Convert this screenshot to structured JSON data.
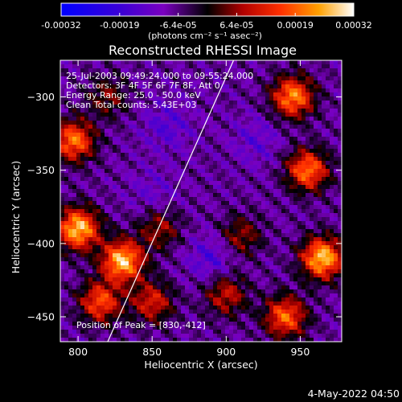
{
  "chart_data": {
    "type": "heatmap",
    "title": "Reconstructed RHESSI Image",
    "xlabel": "Heliocentric X (arcsec)",
    "ylabel": "Heliocentric Y (arcsec)",
    "xlim": [
      788,
      978
    ],
    "ylim": [
      -467,
      -275
    ],
    "x_ticks": [
      800,
      850,
      900,
      950
    ],
    "y_ticks": [
      -300,
      -350,
      -400,
      -450
    ],
    "colorbar": {
      "ticks": [
        "-0.00032",
        "-0.00019",
        "-6.4e-05",
        "6.4e-05",
        "0.00019",
        "0.00032"
      ],
      "range": [
        -0.00032,
        0.00032
      ],
      "unit_label": "(photons cm⁻² s⁻¹ asec⁻²)"
    },
    "info_lines": [
      "25-Jul-2003 09:49:24.000 to 09:55:24.000",
      "Detectors: 3F 4F 5F 6F 7F 8F, Att 0",
      "Energy Range: 25.0 - 50.0 keV",
      "Clean     Total counts: 5.43E+03"
    ],
    "peak_label": "Position of Peak = [830,-412]",
    "peak": [
      830,
      -412
    ],
    "limb_line": [
      [
        820,
        -467
      ],
      [
        905,
        -275
      ]
    ],
    "hotspots": [
      {
        "x": 797,
        "y": -330,
        "amp": 0.8
      },
      {
        "x": 800,
        "y": -390,
        "amp": 1.0
      },
      {
        "x": 830,
        "y": -412,
        "amp": 1.0
      },
      {
        "x": 815,
        "y": -440,
        "amp": 0.7
      },
      {
        "x": 855,
        "y": -390,
        "amp": 0.4
      },
      {
        "x": 850,
        "y": -440,
        "amp": 0.55
      },
      {
        "x": 945,
        "y": -300,
        "amp": 0.85
      },
      {
        "x": 955,
        "y": -350,
        "amp": 0.8
      },
      {
        "x": 965,
        "y": -410,
        "amp": 1.0
      },
      {
        "x": 940,
        "y": -450,
        "amp": 0.75
      },
      {
        "x": 910,
        "y": -395,
        "amp": 0.4
      },
      {
        "x": 900,
        "y": -435,
        "amp": 0.5
      },
      {
        "x": 820,
        "y": -300,
        "amp": 0.35
      }
    ],
    "coldspots": [
      {
        "x": 860,
        "y": -320,
        "amp": 0.6
      },
      {
        "x": 890,
        "y": -410,
        "amp": 0.7
      },
      {
        "x": 850,
        "y": -365,
        "amp": 0.4
      },
      {
        "x": 920,
        "y": -330,
        "amp": 0.5
      }
    ]
  },
  "footer": {
    "date": "4-May-2022 04:50"
  }
}
